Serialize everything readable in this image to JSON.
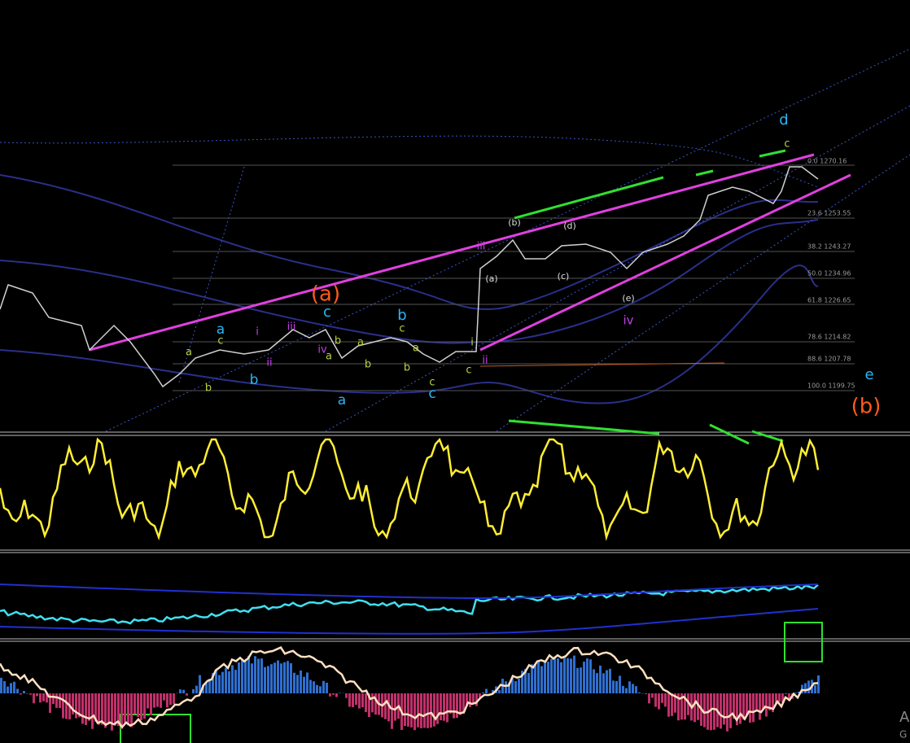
{
  "fib_levels": [
    "0.0 1270.16",
    "23.6 1253.55",
    "38.2 1243.27",
    "50.0 1234.96",
    "61.8 1226.65",
    "78.6 1214.82",
    "88.6 1207.78",
    "100.0 1199.75"
  ],
  "wave_labels": [
    "(a)",
    "(b)",
    "d",
    "e",
    "c",
    "b",
    "a",
    "b",
    "a",
    "c",
    "iii",
    "i",
    "ii",
    "iv",
    "iii",
    "ii",
    "iv",
    "c",
    "(b)",
    "(d)",
    "(a)",
    "(c)",
    "(e)",
    "a",
    "b",
    "c",
    "b",
    "a",
    "a",
    "b",
    "c",
    "a",
    "b",
    "c",
    "c",
    "i"
  ],
  "watermark": [
    "A",
    "G"
  ]
}
